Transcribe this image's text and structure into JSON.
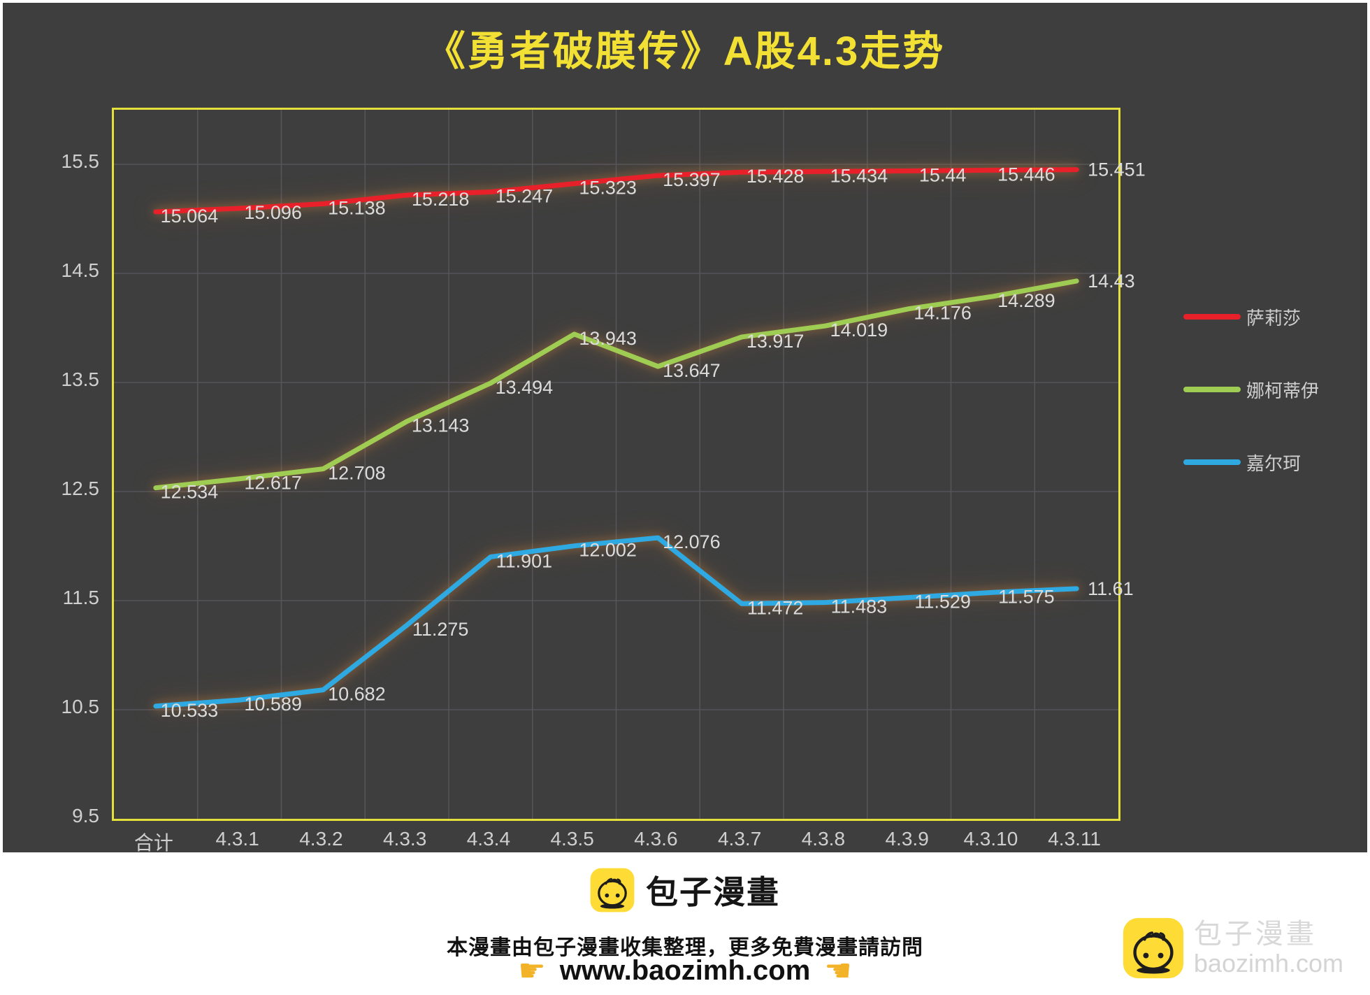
{
  "title": "《勇者破膜传》A股4.3走势",
  "chart_data": {
    "type": "line",
    "title": "《勇者破膜传》A股4.3走势",
    "categories": [
      "合计",
      "4.3.1",
      "4.3.2",
      "4.3.3",
      "4.3.4",
      "4.3.5",
      "4.3.6",
      "4.3.7",
      "4.3.8",
      "4.3.9",
      "4.3.10",
      "4.3.11"
    ],
    "series": [
      {
        "name": "萨莉莎",
        "color": "#E8202A",
        "values": [
          15.064,
          15.096,
          15.138,
          15.218,
          15.247,
          15.323,
          15.397,
          15.428,
          15.434,
          15.44,
          15.446,
          15.451
        ]
      },
      {
        "name": "娜柯蒂伊",
        "color": "#9FCC52",
        "values": [
          12.534,
          12.617,
          12.708,
          13.143,
          13.494,
          13.943,
          13.647,
          13.917,
          14.019,
          14.176,
          14.289,
          14.43
        ]
      },
      {
        "name": "嘉尔珂",
        "color": "#2EA9E1",
        "values": [
          10.533,
          10.589,
          10.682,
          11.275,
          11.901,
          12.002,
          12.076,
          11.472,
          11.483,
          11.529,
          11.575,
          11.61
        ]
      }
    ],
    "xlabel": "",
    "ylabel": "",
    "ylim": [
      9.5,
      16.0
    ],
    "y_ticks": [
      9.5,
      10.5,
      11.5,
      12.5,
      13.5,
      14.5,
      15.5
    ],
    "grid": true,
    "legend_position": "right",
    "colors": {
      "background": "#3E3E3E",
      "plot_border": "#E4E03C",
      "grid": "#55555A",
      "title": "#F2E134",
      "tick_label": "#CFCFCF",
      "data_label": "#DCDCDC"
    }
  },
  "footer": {
    "brand": "包子漫畫",
    "note": "本漫畫由包子漫畫收集整理，更多免費漫畫請訪問",
    "url": "www.baozimh.com",
    "pointing_right_icon": "☛",
    "pointing_left_icon": "☚"
  },
  "watermark": {
    "brand": "包子漫畫",
    "domain": "baozimh.com"
  }
}
